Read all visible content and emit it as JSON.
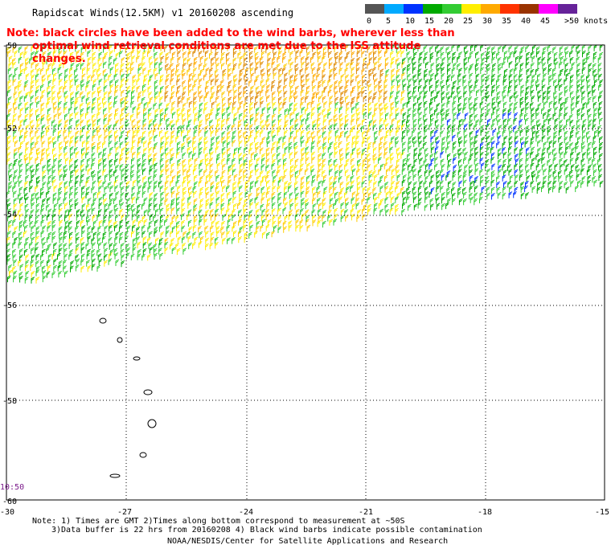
{
  "title": "Rapidscat Winds(12.5KM) v1 20160208 ascending",
  "note": {
    "line1": "Note: black circles have been added to the wind barbs, wherever less than",
    "line2": "optimal wind retrieval conditions are met due to the ISS attitude changes."
  },
  "legend": {
    "unit": ">50 knots",
    "items": [
      {
        "label": "0",
        "color": "#555555"
      },
      {
        "label": "5",
        "color": "#00aaff"
      },
      {
        "label": "10",
        "color": "#0033ff"
      },
      {
        "label": "15",
        "color": "#00aa00"
      },
      {
        "label": "20",
        "color": "#33cc33"
      },
      {
        "label": "25",
        "color": "#ffee00"
      },
      {
        "label": "30",
        "color": "#ffaa00"
      },
      {
        "label": "35",
        "color": "#ff3300"
      },
      {
        "label": "40",
        "color": "#993300"
      },
      {
        "label": "45",
        "color": "#ff00ff"
      },
      {
        "label": "",
        "color": "#662299"
      }
    ]
  },
  "axes": {
    "lat_labels": [
      "-50",
      "-52",
      "-54",
      "-56",
      "-58",
      "-60"
    ],
    "lon_labels": [
      "-30",
      "-27",
      "-24",
      "-21",
      "-18",
      "-15"
    ]
  },
  "time_label": "10:50",
  "footer": {
    "line1": "Note: 1) Times are GMT 2)Times along bottom correspond to measurement at ~50S",
    "line2": "3)Data buffer is 22 hrs from 20160208 4) Black wind barbs indicate possible contamination",
    "line3": "NOAA/NESDIS/Center for Satellite Applications and Research"
  }
}
